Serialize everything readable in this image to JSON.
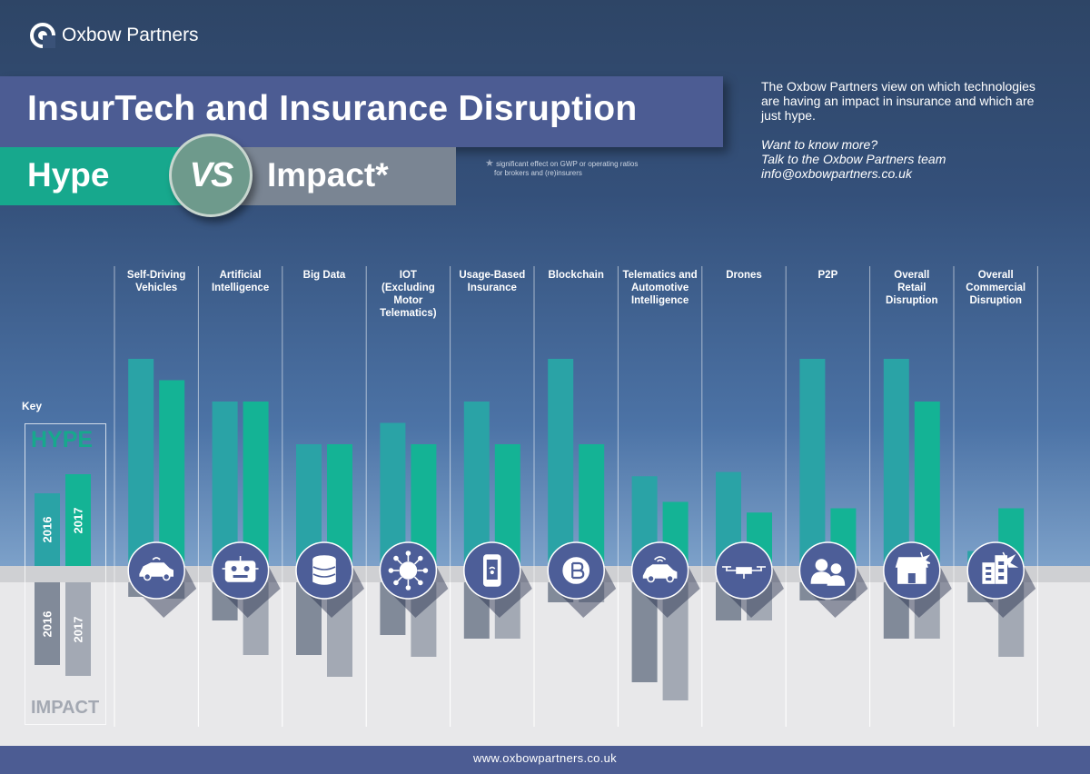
{
  "brand": {
    "name": "Oxbow Partners"
  },
  "header": {
    "title": "InsurTech and Insurance Disruption",
    "hype_label": "Hype",
    "vs_label": "VS",
    "impact_label": "Impact*",
    "footnote_line1": "significant effect on GWP or operating ratios",
    "footnote_line2": "for brokers and (re)insurers"
  },
  "intro": {
    "line1": "The Oxbow Partners view on which technologies",
    "line2": "are having an impact in insurance and which are",
    "line3": "just hype.",
    "cta1": "Want to know more?",
    "cta2": "Talk to the Oxbow Partners team",
    "email": "info@oxbowpartners.co.uk"
  },
  "key": {
    "title": "Key",
    "hype": "HYPE",
    "impact": "IMPACT",
    "year_2016": "2016",
    "year_2017": "2017"
  },
  "colors": {
    "hype_2016": "#2aa3a6",
    "hype_2017": "#14b395",
    "impact_2016": "#818a99",
    "impact_2017": "#a3a9b4",
    "icon_circle": "#4d5e98",
    "title_band": "#4c5c93"
  },
  "chart_data": {
    "type": "bar",
    "title": "InsurTech and Insurance Disruption",
    "scale_note": "relative qualitative scale, values estimated in units of 0-10",
    "series": [
      {
        "name": "HYPE 2016",
        "values": [
          10,
          8,
          6,
          7,
          8,
          10,
          4.5,
          4.7,
          10,
          10,
          1
        ]
      },
      {
        "name": "HYPE 2017",
        "values": [
          9,
          8,
          6,
          6,
          6,
          6,
          3.3,
          2.8,
          3,
          8,
          3
        ]
      },
      {
        "name": "IMPACT 2016",
        "values": [
          0.8,
          2.1,
          4,
          2.9,
          3.1,
          1.1,
          5.5,
          2.1,
          1,
          3.1,
          1.1
        ]
      },
      {
        "name": "IMPACT 2017",
        "values": [
          0.9,
          4,
          5.2,
          4.1,
          3.1,
          1.1,
          6.5,
          2.1,
          1,
          3.1,
          4.1
        ]
      }
    ],
    "hype_ylim": [
      0,
      10
    ],
    "impact_ylim": [
      0,
      7
    ],
    "categories": [
      {
        "name": "Self-Driving Vehicles",
        "lines": [
          "Self-Driving",
          "Vehicles"
        ],
        "icon": "car-icon"
      },
      {
        "name": "Artificial Intelligence",
        "lines": [
          "Artificial",
          "Intelligence"
        ],
        "icon": "robot-icon"
      },
      {
        "name": "Big Data",
        "lines": [
          "Big Data"
        ],
        "icon": "database-icon"
      },
      {
        "name": "IOT (Excluding Motor Telematics)",
        "lines": [
          "IOT",
          "(Excluding",
          "Motor",
          "Telematics)"
        ],
        "icon": "network-icon"
      },
      {
        "name": "Usage-Based Insurance",
        "lines": [
          "Usage-Based",
          "Insurance"
        ],
        "icon": "smartphone-icon"
      },
      {
        "name": "Blockchain",
        "lines": [
          "Blockchain"
        ],
        "icon": "bitcoin-icon"
      },
      {
        "name": "Telematics and Automotive Intelligence",
        "lines": [
          "Telematics and",
          "Automotive",
          "Intelligence"
        ],
        "icon": "connected-car-icon"
      },
      {
        "name": "Drones",
        "lines": [
          "Drones"
        ],
        "icon": "drone-icon"
      },
      {
        "name": "P2P",
        "lines": [
          "P2P"
        ],
        "icon": "people-icon"
      },
      {
        "name": "Overall Retail Disruption",
        "lines": [
          "Overall",
          "Retail",
          "Disruption"
        ],
        "icon": "shop-icon"
      },
      {
        "name": "Overall Commercial Disruption",
        "lines": [
          "Overall",
          "Commercial",
          "Disruption"
        ],
        "icon": "building-icon"
      }
    ]
  },
  "footer": {
    "url": "www.oxbowpartners.co.uk"
  }
}
